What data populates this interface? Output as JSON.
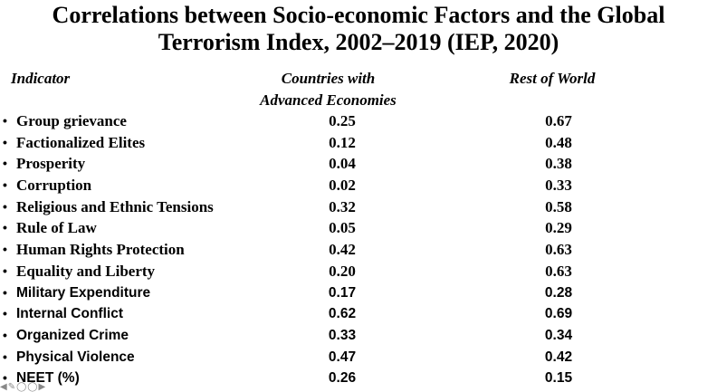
{
  "title": {
    "line1": "Correlations between Socio-economic Factors and the Global",
    "line2": "Terrorism Index, 2002–2019  (IEP, 2020)"
  },
  "headers": {
    "indicator": "Indicator",
    "advanced_line1": "Countries with",
    "advanced_line2": "Advanced Economies",
    "rest": "Rest of World"
  },
  "rows": [
    {
      "indicator": "Group grievance",
      "advanced": "0.25",
      "rest": "0.67"
    },
    {
      "indicator": "Factionalized Elites",
      "advanced": "0.12",
      "rest": "0.48"
    },
    {
      "indicator": "Prosperity",
      "advanced": "0.04",
      "rest": "0.38"
    },
    {
      "indicator": "Corruption",
      "advanced": "0.02",
      "rest": "0.33"
    },
    {
      "indicator": "Religious and Ethnic Tensions",
      "advanced": "0.32",
      "rest": "0.58"
    },
    {
      "indicator": "Rule of Law",
      "advanced": "0.05",
      "rest": "0.29"
    },
    {
      "indicator": "Human Rights Protection",
      "advanced": "0.42",
      "rest": "0.63"
    },
    {
      "indicator": "Equality and Liberty",
      "advanced": "0.20",
      "rest": "0.63"
    },
    {
      "indicator": "Military Expenditure",
      "advanced": "0.17",
      "rest": "0.28"
    },
    {
      "indicator": "Internal Conflict",
      "advanced": "0.62",
      "rest": "0.69"
    },
    {
      "indicator": "Organized Crime",
      "advanced": "0.33",
      "rest": "0.34"
    },
    {
      "indicator": "Physical Violence",
      "advanced": "0.47",
      "rest": "0.42"
    },
    {
      "indicator": "NEET (%)",
      "advanced": "0.26",
      "rest": "0.15"
    }
  ],
  "nav_icons": [
    "arrow-left-icon",
    "pencil-icon",
    "circle-icon",
    "circle-icon",
    "arrow-right-icon"
  ]
}
